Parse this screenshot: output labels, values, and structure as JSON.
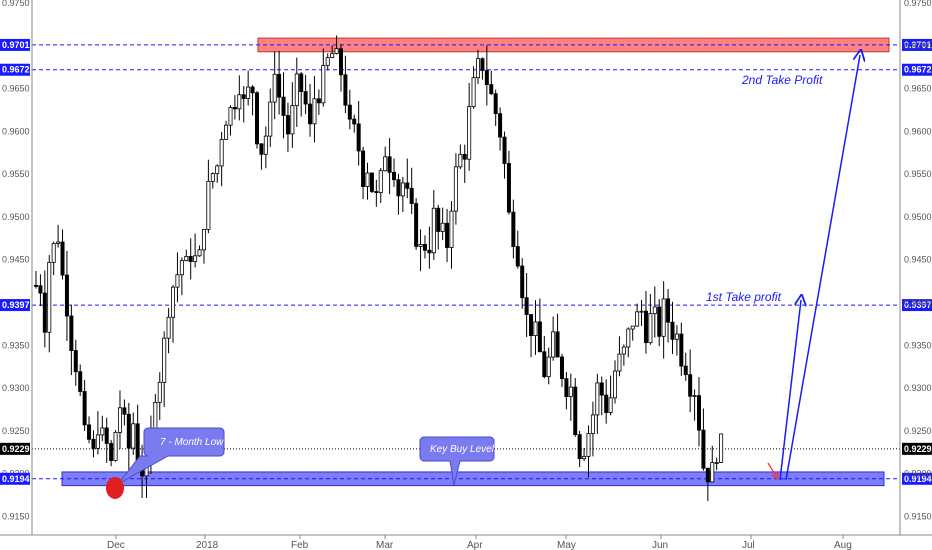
{
  "chart_data": {
    "type": "candlestick",
    "title": "",
    "xlabel": "",
    "ylabel": "",
    "ylim": [
      0.914,
      0.975
    ],
    "y_ticks": [
      "0.9750",
      "0.9700",
      "0.9650",
      "0.9600",
      "0.9550",
      "0.9500",
      "0.9450",
      "0.9400",
      "0.9350",
      "0.9300",
      "0.9250",
      "0.9200",
      "0.9150"
    ],
    "x_ticks": [
      "Dec",
      "2018",
      "Feb",
      "Mar",
      "Apr",
      "May",
      "Jun",
      "Jul",
      "Aug"
    ],
    "levels": [
      {
        "value": 0.9701,
        "label": "0.9701",
        "color": "#1a1aff",
        "style": "dashed"
      },
      {
        "value": 0.9672,
        "label": "0.9672",
        "color": "#1a1aff",
        "style": "dashed"
      },
      {
        "value": 0.9397,
        "label": "0.9397",
        "color": "#1a1aff",
        "style": "dashed"
      },
      {
        "value": 0.9229,
        "label": "0.9229",
        "color": "#000000",
        "style": "dotted"
      },
      {
        "value": 0.9194,
        "label": "0.9194",
        "color": "#1a1aff",
        "style": "dashed"
      }
    ],
    "zones": [
      {
        "name": "resistance",
        "low": 0.9693,
        "high": 0.9709,
        "color": "#ff6b6b"
      },
      {
        "name": "support",
        "low": 0.9186,
        "high": 0.9202,
        "color": "#6666ff"
      }
    ],
    "annotations": {
      "take_profit_1": "1st Take profit",
      "take_profit_2": "2nd Take Profit",
      "key_buy_level": "Key Buy Level",
      "month_low": "7 - Month Low"
    },
    "series_seed": [
      0.942,
      0.938,
      0.945,
      0.948,
      0.943,
      0.94,
      0.933,
      0.929,
      0.924,
      0.922,
      0.926,
      0.924,
      0.921,
      0.925,
      0.928,
      0.923,
      0.926,
      0.922,
      0.92,
      0.924,
      0.93,
      0.935,
      0.94,
      0.942,
      0.945,
      0.944,
      0.946,
      0.945,
      0.95,
      0.953,
      0.956,
      0.96,
      0.962,
      0.964,
      0.966,
      0.963,
      0.965,
      0.96,
      0.958,
      0.962,
      0.968,
      0.964,
      0.96,
      0.962,
      0.965,
      0.963,
      0.96,
      0.964,
      0.966,
      0.968,
      0.969,
      0.967,
      0.964,
      0.96,
      0.958,
      0.955,
      0.956,
      0.952,
      0.954,
      0.958,
      0.956,
      0.953,
      0.954,
      0.95,
      0.948,
      0.946,
      0.947,
      0.95,
      0.948,
      0.947,
      0.952,
      0.955,
      0.958,
      0.962,
      0.965,
      0.968,
      0.966,
      0.964,
      0.96,
      0.956,
      0.95,
      0.946,
      0.942,
      0.938,
      0.936,
      0.934,
      0.932,
      0.935,
      0.933,
      0.932,
      0.93,
      0.926,
      0.923,
      0.925,
      0.927,
      0.93,
      0.928,
      0.929,
      0.932,
      0.934,
      0.936,
      0.938,
      0.939,
      0.937,
      0.938,
      0.937,
      0.939,
      0.938,
      0.936,
      0.934,
      0.933,
      0.93,
      0.926,
      0.921,
      0.92,
      0.923,
      0.9229
    ]
  },
  "colors": {
    "axis_label_bg": "#1a1aff",
    "axis_label_current_bg": "#000000",
    "candle": "#000000",
    "arrow": "#1a1aff",
    "arrow_small": "#ff2a2a",
    "callout_bg": "#7b7bf0",
    "low_marker": "#e02020"
  }
}
